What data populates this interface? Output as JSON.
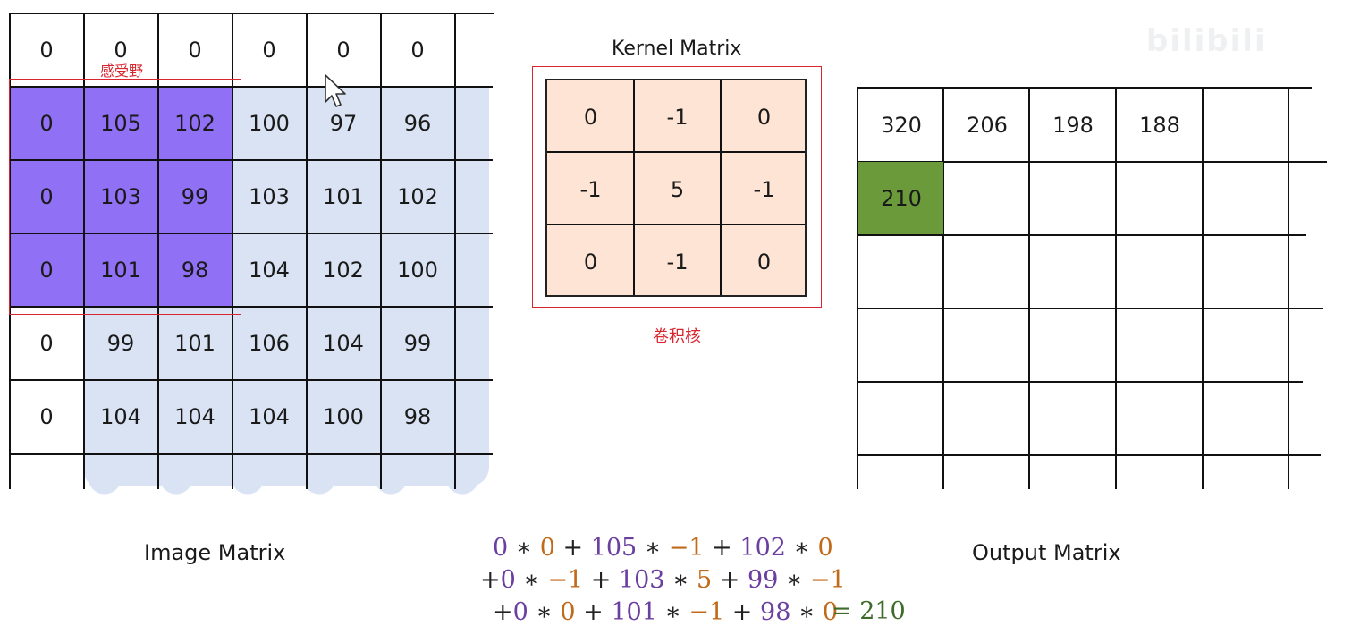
{
  "image_matrix": {
    "caption": "Image Matrix",
    "rows": [
      [
        "0",
        "0",
        "0",
        "0",
        "0",
        "0"
      ],
      [
        "0",
        "105",
        "102",
        "100",
        "97",
        "96"
      ],
      [
        "0",
        "103",
        "99",
        "103",
        "101",
        "102"
      ],
      [
        "0",
        "101",
        "98",
        "104",
        "102",
        "100"
      ],
      [
        "0",
        "99",
        "101",
        "106",
        "104",
        "99"
      ],
      [
        "0",
        "104",
        "104",
        "104",
        "100",
        "98"
      ]
    ],
    "receptive_field_label": "感受野"
  },
  "kernel": {
    "title": "Kernel Matrix",
    "label_cn": "卷积核",
    "rows": [
      [
        "0",
        "-1",
        "0"
      ],
      [
        "-1",
        "5",
        "-1"
      ],
      [
        "0",
        "-1",
        "0"
      ]
    ]
  },
  "output_matrix": {
    "caption": "Output Matrix",
    "row1": [
      "320",
      "206",
      "198",
      "188"
    ],
    "highlight_value": "210"
  },
  "formula": {
    "line1": [
      {
        "t": "0",
        "c": "p"
      },
      {
        "t": " ∗ ",
        "c": "k"
      },
      {
        "t": "0",
        "c": "o"
      },
      {
        "t": " + ",
        "c": "k"
      },
      {
        "t": "105",
        "c": "p"
      },
      {
        "t": " ∗ ",
        "c": "k"
      },
      {
        "t": "−1",
        "c": "o"
      },
      {
        "t": " + ",
        "c": "k"
      },
      {
        "t": "102",
        "c": "p"
      },
      {
        "t": " ∗ ",
        "c": "k"
      },
      {
        "t": "0",
        "c": "o"
      }
    ],
    "line2": [
      {
        "t": "+",
        "c": "k"
      },
      {
        "t": "0",
        "c": "p"
      },
      {
        "t": " ∗ ",
        "c": "k"
      },
      {
        "t": "−1",
        "c": "o"
      },
      {
        "t": " + ",
        "c": "k"
      },
      {
        "t": "103",
        "c": "p"
      },
      {
        "t": " ∗ ",
        "c": "k"
      },
      {
        "t": "5",
        "c": "o"
      },
      {
        "t": " + ",
        "c": "k"
      },
      {
        "t": "99",
        "c": "p"
      },
      {
        "t": " ∗ ",
        "c": "k"
      },
      {
        "t": "−1",
        "c": "o"
      }
    ],
    "line3": [
      {
        "t": "+",
        "c": "k"
      },
      {
        "t": "0",
        "c": "p"
      },
      {
        "t": " ∗ ",
        "c": "k"
      },
      {
        "t": "0",
        "c": "o"
      },
      {
        "t": " + ",
        "c": "k"
      },
      {
        "t": "101",
        "c": "p"
      },
      {
        "t": " ∗ ",
        "c": "k"
      },
      {
        "t": "−1",
        "c": "o"
      },
      {
        "t": " + ",
        "c": "k"
      },
      {
        "t": "98",
        "c": "p"
      },
      {
        "t": " ∗ ",
        "c": "k"
      },
      {
        "t": "0",
        "c": "o"
      }
    ],
    "result": "= 210"
  },
  "colors": {
    "receptive_field": "#9070f5",
    "image_background": "#d9e3f3",
    "kernel_fill": "#fde4d4",
    "output_highlight": "#6a9a3a",
    "annotation_red": "#d9262e"
  },
  "icons": {
    "cursor": "mouse-pointer-icon"
  },
  "watermark_text": "bilibili"
}
